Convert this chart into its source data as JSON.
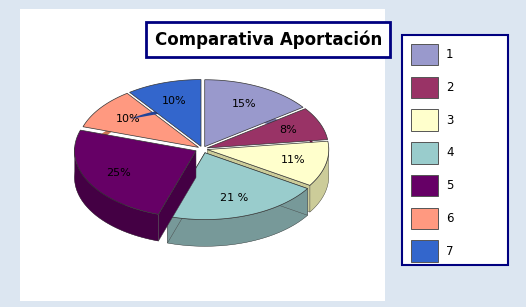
{
  "title": "Comparativa Aportación",
  "labels": [
    "1",
    "2",
    "3",
    "4",
    "5",
    "6",
    "7"
  ],
  "values": [
    15,
    8,
    11,
    21,
    25,
    10,
    10
  ],
  "colors": [
    "#9999cc",
    "#993366",
    "#ffffcc",
    "#99cccc",
    "#660066",
    "#ff9980",
    "#3366cc"
  ],
  "side_colors": [
    "#7777aa",
    "#771144",
    "#cccc99",
    "#779999",
    "#440044",
    "#cc7755",
    "#224499"
  ],
  "pct_labels": [
    "15%",
    "8%",
    "11%",
    "21 %",
    "25%",
    "10%",
    "10%"
  ],
  "background_color": "#ffffff",
  "outer_bg": "#dce6f1",
  "title_fontsize": 12,
  "legend_fontsize": 8.5,
  "label_fontsize": 8
}
